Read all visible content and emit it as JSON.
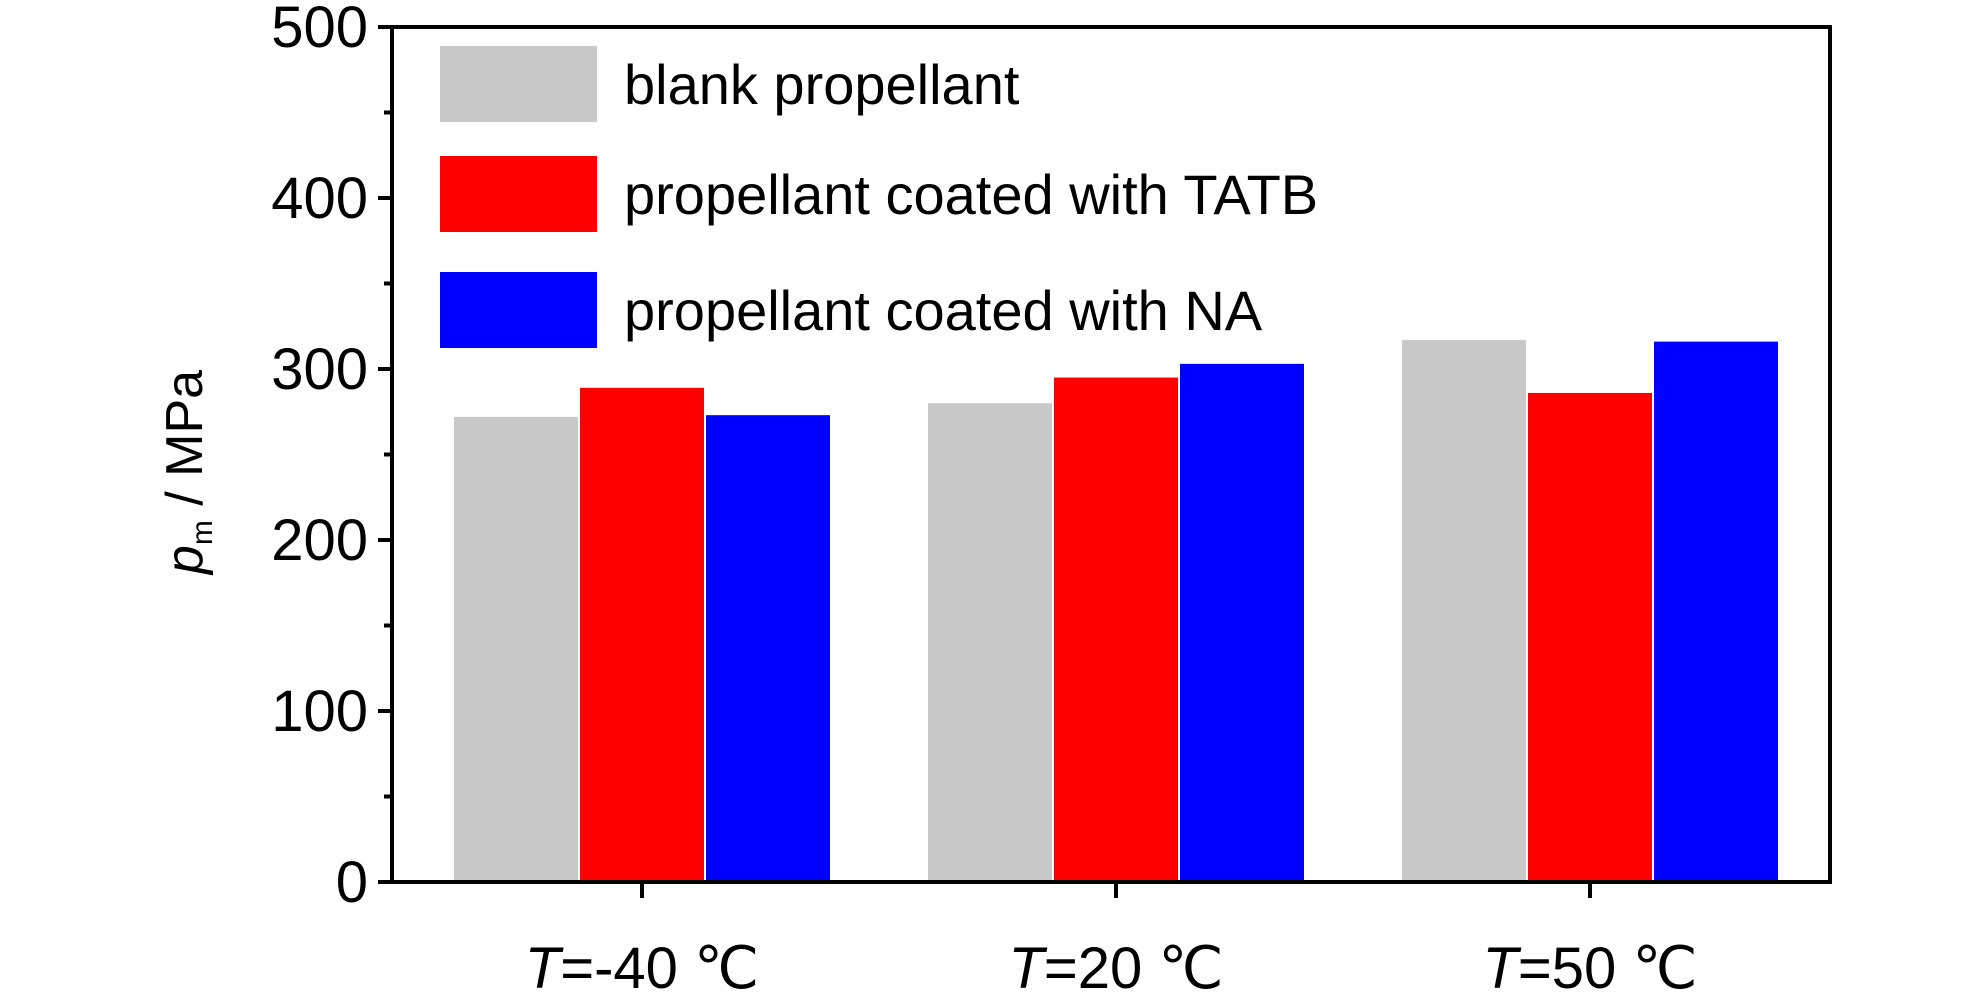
{
  "chart_data": {
    "type": "bar",
    "categories": [
      {
        "var": "T",
        "rest": "=-40 ℃"
      },
      {
        "var": "T",
        "rest": "=20 ℃"
      },
      {
        "var": "T",
        "rest": "=50 ℃"
      }
    ],
    "series": [
      {
        "name": "blank propellant",
        "color": "#c8c8c8",
        "values": [
          272,
          280,
          317
        ]
      },
      {
        "name": "propellant coated with TATB",
        "color": "#ff0000",
        "values": [
          289,
          295,
          286
        ]
      },
      {
        "name": "propellant coated with NA",
        "color": "#0000ff",
        "values": [
          273,
          303,
          316
        ]
      }
    ],
    "ylabel": {
      "var": "p",
      "sub": "m",
      "rest": " / MPa"
    },
    "ylim": [
      0,
      500
    ],
    "yticks": [
      "0",
      "100",
      "200",
      "300",
      "400",
      "500"
    ],
    "grid": false,
    "legend_position": "top-left"
  }
}
